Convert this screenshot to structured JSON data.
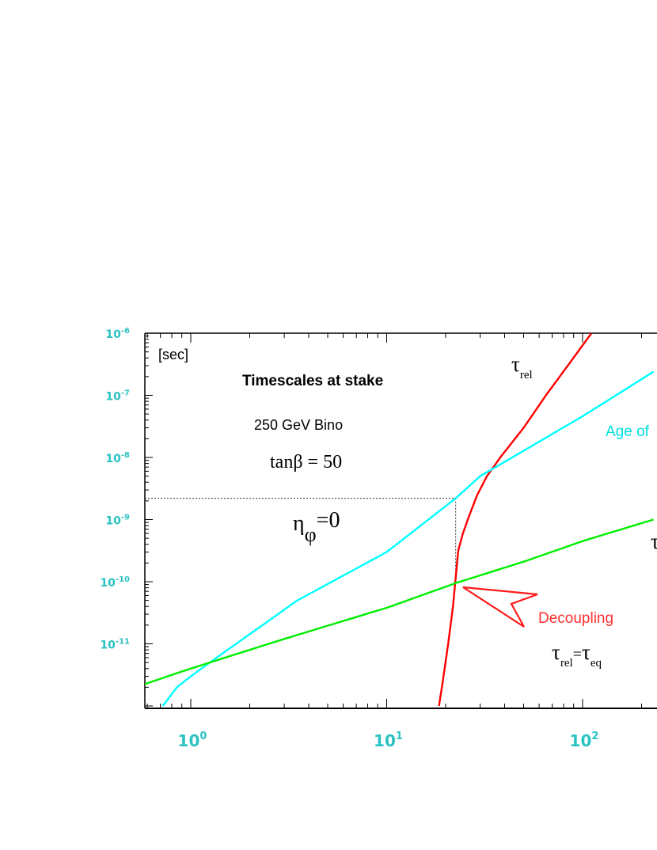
{
  "chart_data": {
    "type": "line",
    "xscale": "log",
    "yscale": "log",
    "xlim": [
      0.57,
      230
    ],
    "ylim": [
      1e-12,
      1e-06
    ],
    "unit_label": "[sec]",
    "title": "Timescales at stake",
    "subtitle": "250 GeV Bino",
    "param_label": "tanβ = 50",
    "eta_label": {
      "main": "η",
      "sub": "φ",
      "rest": "=0"
    },
    "x_ticks": [
      {
        "value": 1,
        "base": "10",
        "exp": "0"
      },
      {
        "value": 10,
        "base": "10",
        "exp": "1"
      },
      {
        "value": 100,
        "base": "10",
        "exp": "2"
      }
    ],
    "y_ticks": [
      {
        "value": 1e-06,
        "base": "10",
        "exp": "-6"
      },
      {
        "value": 1e-07,
        "base": "10",
        "exp": "-7"
      },
      {
        "value": 1e-08,
        "base": "10",
        "exp": "-8"
      },
      {
        "value": 1e-09,
        "base": "10",
        "exp": "-9"
      },
      {
        "value": 1e-10,
        "base": "10",
        "exp": "-10"
      },
      {
        "value": 1e-11,
        "base": "10",
        "exp": "-11"
      }
    ],
    "series": [
      {
        "name": "",
        "label_main": "τ",
        "label_sub": "rel",
        "color": "#ff0000",
        "points": [
          [
            18.5,
            1e-12
          ],
          [
            19.5,
            3e-12
          ],
          [
            20.6,
            1e-11
          ],
          [
            21.8,
            4e-11
          ],
          [
            22.4,
            1e-10
          ],
          [
            23.2,
            3.2e-10
          ],
          [
            24.5,
            6e-10
          ],
          [
            26.5,
            1.2e-09
          ],
          [
            29,
            2.5e-09
          ],
          [
            32.5,
            5e-09
          ],
          [
            38,
            1e-08
          ],
          [
            50,
            3e-08
          ],
          [
            65,
            1e-07
          ],
          [
            84,
            3e-07
          ],
          [
            111,
            1e-06
          ]
        ]
      },
      {
        "name": "Age of",
        "color": "#00ffff",
        "points": [
          [
            0.72,
            1e-12
          ],
          [
            0.85,
            2e-12
          ],
          [
            1,
            3e-12
          ],
          [
            1.25,
            5e-12
          ],
          [
            3.5,
            5e-11
          ],
          [
            10,
            3e-10
          ],
          [
            22.5,
            2.2e-09
          ],
          [
            30,
            5e-09
          ],
          [
            100,
            4.6e-08
          ],
          [
            230,
            2.4e-07
          ]
        ]
      },
      {
        "name": "",
        "label_main": "τ",
        "color": "#00ee00",
        "points": [
          [
            0.57,
            2.2e-12
          ],
          [
            1,
            4e-12
          ],
          [
            3,
            1.2e-11
          ],
          [
            10,
            3.8e-11
          ],
          [
            22.5,
            9.5e-11
          ],
          [
            50,
            2.1e-10
          ],
          [
            100,
            4.5e-10
          ],
          [
            230,
            1e-09
          ]
        ]
      }
    ],
    "guide_point": {
      "x": 22.5,
      "y": 2.2e-09,
      "y_at_bottom": 9.5e-11
    },
    "annotation": {
      "text": "Decoupling",
      "color": "#ff3030",
      "formula": {
        "l_main": "τ",
        "l_sub": "rel",
        "eq": "=",
        "r_main": "τ",
        "r_sub": "eq"
      }
    }
  }
}
